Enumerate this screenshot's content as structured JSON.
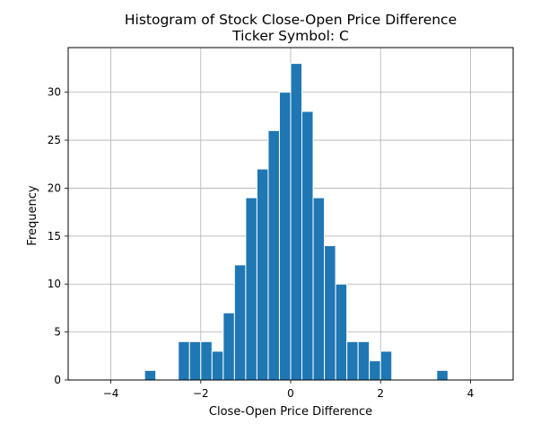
{
  "chart_data": {
    "type": "bar",
    "title_lines": [
      "Histogram of Stock Close-Open Price Difference",
      "Ticker Symbol: C"
    ],
    "xlabel": "Close-Open Price Difference",
    "ylabel": "Frequency",
    "xlim": [
      -4.95,
      4.95
    ],
    "ylim": [
      0,
      34.65
    ],
    "xticks": [
      -4,
      -2,
      0,
      2,
      4
    ],
    "xtick_labels": [
      "−4",
      "−2",
      "0",
      "2",
      "4"
    ],
    "yticks": [
      0,
      5,
      10,
      15,
      20,
      25,
      30
    ],
    "ytick_labels": [
      "0",
      "5",
      "10",
      "15",
      "20",
      "25",
      "30"
    ],
    "grid": true,
    "bar_color": "#1f77b4",
    "bin_width": 0.25,
    "bars": [
      {
        "x": -3.125,
        "height": 1
      },
      {
        "x": -2.375,
        "height": 4
      },
      {
        "x": -2.125,
        "height": 4
      },
      {
        "x": -1.875,
        "height": 4
      },
      {
        "x": -1.625,
        "height": 3
      },
      {
        "x": -1.375,
        "height": 7
      },
      {
        "x": -1.125,
        "height": 12
      },
      {
        "x": -0.875,
        "height": 19
      },
      {
        "x": -0.625,
        "height": 22
      },
      {
        "x": -0.375,
        "height": 26
      },
      {
        "x": -0.125,
        "height": 30
      },
      {
        "x": 0.125,
        "height": 33
      },
      {
        "x": 0.375,
        "height": 28
      },
      {
        "x": 0.625,
        "height": 19
      },
      {
        "x": 0.875,
        "height": 14
      },
      {
        "x": 1.125,
        "height": 10
      },
      {
        "x": 1.375,
        "height": 4
      },
      {
        "x": 1.625,
        "height": 4
      },
      {
        "x": 1.875,
        "height": 2
      },
      {
        "x": 2.125,
        "height": 3
      },
      {
        "x": 3.375,
        "height": 1
      }
    ]
  }
}
